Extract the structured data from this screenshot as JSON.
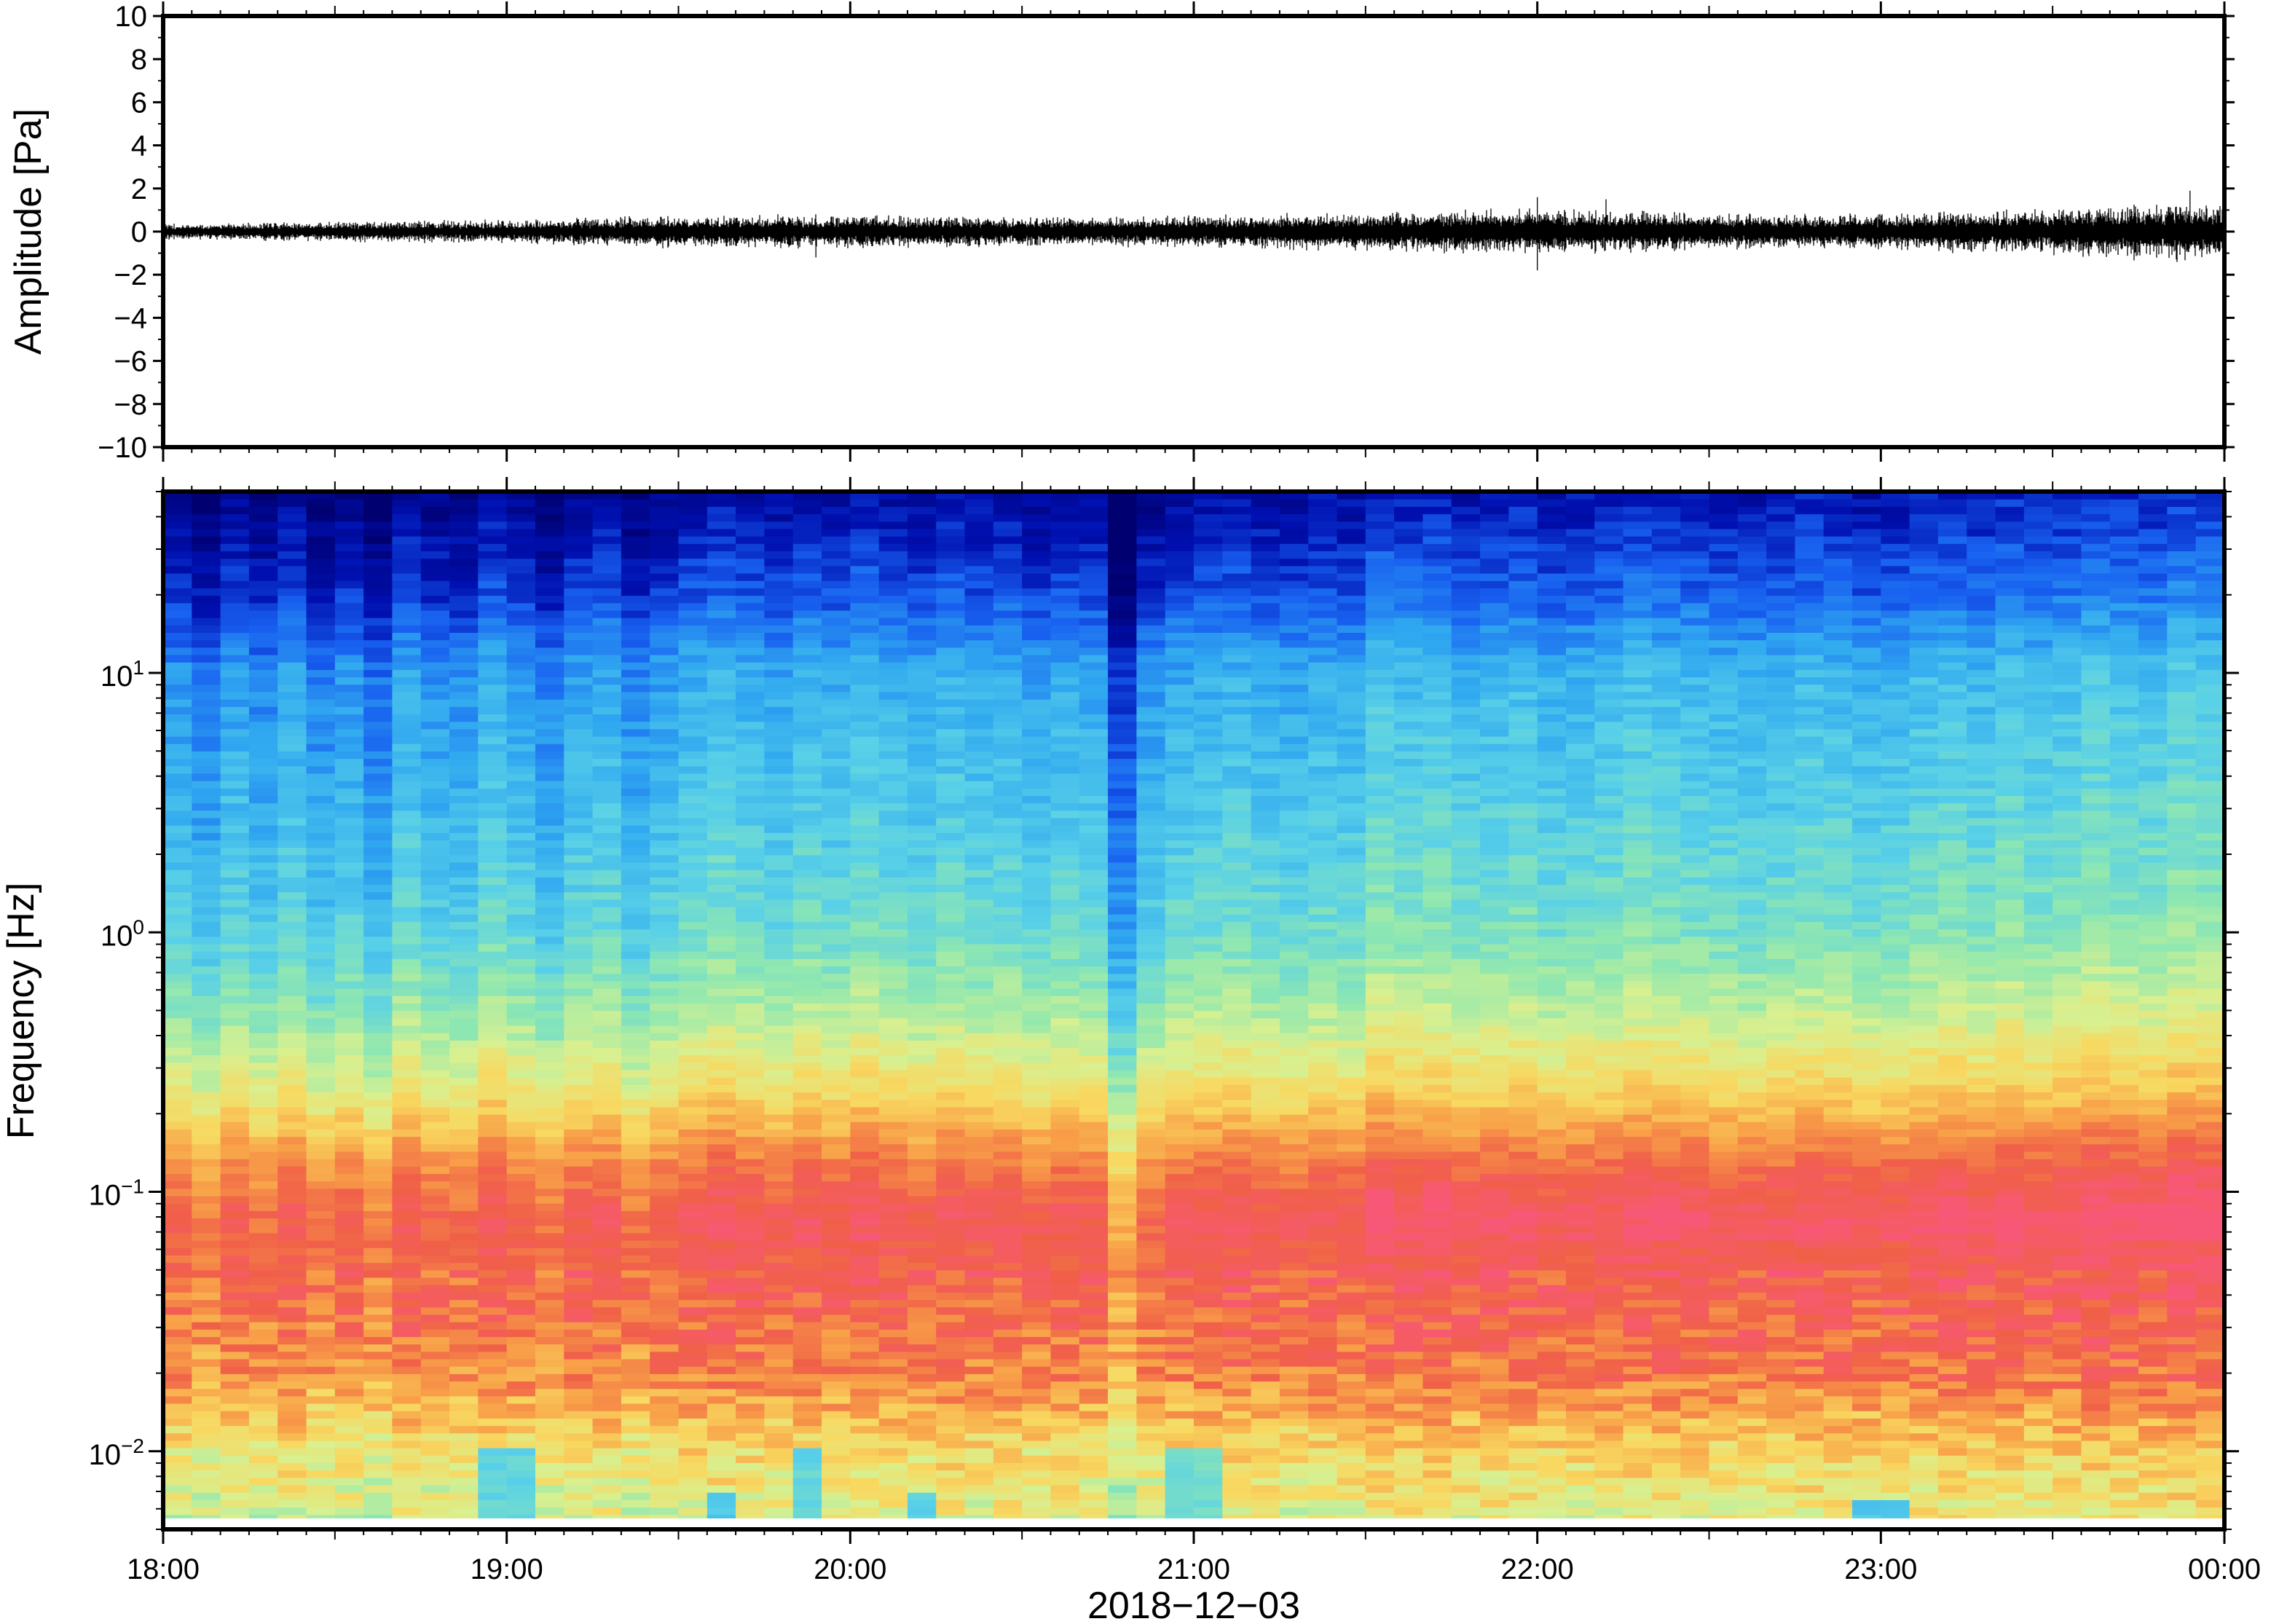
{
  "chart_data": [
    {
      "type": "line",
      "panel": "waveform",
      "xlabel": "",
      "ylabel": "Amplitude [Pa]",
      "xlim": [
        "18:00",
        "00:00"
      ],
      "ylim": [
        -10,
        10
      ],
      "yticks": [
        10,
        8,
        6,
        4,
        2,
        0,
        -2,
        -4,
        -6,
        -8,
        -10
      ],
      "ytick_labels": [
        "10",
        "8",
        "6",
        "4",
        "2",
        "0",
        "−2",
        "−4",
        "−6",
        "−8",
        "−10"
      ],
      "grid": false,
      "series": [
        {
          "color": "#000000",
          "x_hours": [
            18.0,
            18.5,
            19.0,
            19.5,
            20.0,
            20.5,
            21.0,
            21.5,
            22.0,
            22.5,
            23.0,
            23.5,
            24.0
          ],
          "envelope_amplitude": [
            0.4,
            0.5,
            0.6,
            0.8,
            0.9,
            0.7,
            0.8,
            1.0,
            1.2,
            0.9,
            0.9,
            1.2,
            1.5
          ],
          "peaks": [
            {
              "x_hours": 19.9,
              "value": -1.2
            },
            {
              "x_hours": 22.0,
              "value": 1.6
            },
            {
              "x_hours": 22.0,
              "value": -1.8
            },
            {
              "x_hours": 22.2,
              "value": 1.5
            },
            {
              "x_hours": 23.9,
              "value": 1.9
            }
          ]
        }
      ]
    },
    {
      "type": "heatmap",
      "panel": "spectrogram",
      "xlabel": "2018−12−03",
      "ylabel": "Frequency [Hz]",
      "xlim": [
        "18:00",
        "00:00"
      ],
      "ylim": [
        0.005,
        50
      ],
      "y_scale": "log",
      "xticks": [
        "18:00",
        "19:00",
        "20:00",
        "21:00",
        "22:00",
        "23:00",
        "00:00"
      ],
      "yticks": [
        {
          "value": 10,
          "base": "10",
          "exp": "1"
        },
        {
          "value": 1,
          "base": "10",
          "exp": "0"
        },
        {
          "value": 0.1,
          "base": "10",
          "exp": "−1"
        },
        {
          "value": 0.01,
          "base": "10",
          "exp": "−2"
        }
      ],
      "colormap": [
        "#000070",
        "#0010b0",
        "#1860f0",
        "#30a8f0",
        "#58d0e8",
        "#90e8b0",
        "#d8f090",
        "#f8d860",
        "#f8a048",
        "#f06048",
        "#f85878"
      ],
      "time_bins": 72,
      "freq_bins": 140,
      "power_profile": {
        "log10_freq": [
          -2.3,
          -2.0,
          -1.7,
          -1.4,
          -1.1,
          -0.9,
          -0.6,
          -0.3,
          0.0,
          0.5,
          1.0,
          1.3,
          1.7
        ],
        "normalized_level": [
          0.58,
          0.66,
          0.82,
          0.88,
          0.9,
          0.82,
          0.63,
          0.5,
          0.4,
          0.33,
          0.27,
          0.14,
          0.03
        ]
      },
      "column_offsets": [
        0.0,
        -0.04,
        0.02,
        -0.02,
        0.03,
        -0.03,
        0.01,
        -0.05,
        0.04,
        0.0,
        -0.01,
        0.05,
        0.02,
        -0.03,
        0.03,
        0.04,
        -0.02,
        0.02,
        0.05,
        0.07,
        0.05,
        0.03,
        0.06,
        0.04,
        0.07,
        0.05,
        0.03,
        0.06,
        0.04,
        0.05,
        0.02,
        0.04,
        0.03,
        -0.12,
        0.0,
        0.04,
        0.05,
        0.06,
        0.04,
        0.03,
        0.05,
        0.04,
        0.1,
        0.08,
        0.09,
        0.06,
        0.07,
        0.08,
        0.05,
        0.06,
        0.07,
        0.09,
        0.08,
        0.07,
        0.06,
        0.05,
        0.06,
        0.08,
        0.07,
        0.05,
        0.06,
        0.08,
        0.09,
        0.07,
        0.1,
        0.08,
        0.09,
        0.11,
        0.1,
        0.09,
        0.12,
        0.11
      ],
      "low_freq_dips": [
        {
          "x_hours": 19.0,
          "log10_freq_below": -2.0,
          "level": 0.42
        },
        {
          "x_hours": 19.6,
          "log10_freq_below": -2.15,
          "level": 0.38
        },
        {
          "x_hours": 19.9,
          "log10_freq_below": -2.0,
          "level": 0.42
        },
        {
          "x_hours": 20.2,
          "log10_freq_below": -2.15,
          "level": 0.4
        },
        {
          "x_hours": 21.0,
          "log10_freq_below": -2.0,
          "level": 0.45
        },
        {
          "x_hours": 23.0,
          "log10_freq_below": -2.2,
          "level": 0.38
        }
      ]
    }
  ]
}
